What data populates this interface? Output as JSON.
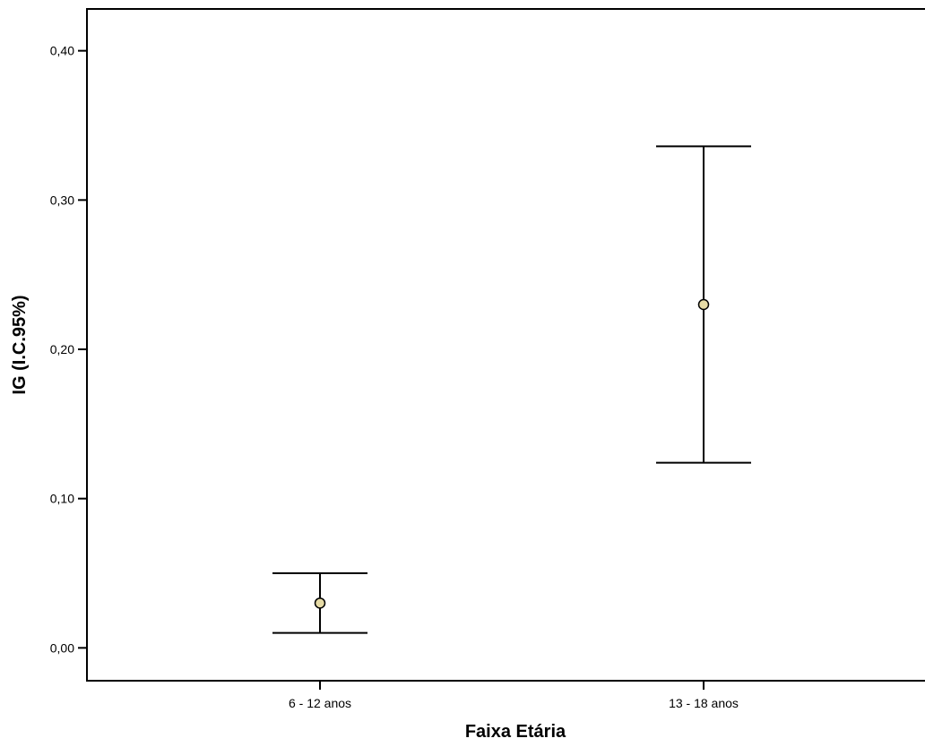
{
  "chart_data": {
    "type": "errorbar",
    "title": "",
    "xlabel": "Faixa Etária",
    "ylabel": "IG (I.C.95%)",
    "categories": [
      "6 - 12 anos",
      "13 - 18 anos"
    ],
    "points": [
      {
        "category": "6 - 12 anos",
        "mean": 0.03,
        "lower": 0.01,
        "upper": 0.05
      },
      {
        "category": "13 - 18 anos",
        "mean": 0.23,
        "lower": 0.124,
        "upper": 0.336
      }
    ],
    "ylim": [
      -0.022,
      0.428
    ],
    "yticks": [
      0.0,
      0.1,
      0.2,
      0.3,
      0.4
    ],
    "ytick_labels": [
      "0,00",
      "0,10",
      "0,20",
      "0,30",
      "0,40"
    ],
    "grid": false,
    "marker_color": "#e6dba6",
    "line_color": "#000000"
  }
}
